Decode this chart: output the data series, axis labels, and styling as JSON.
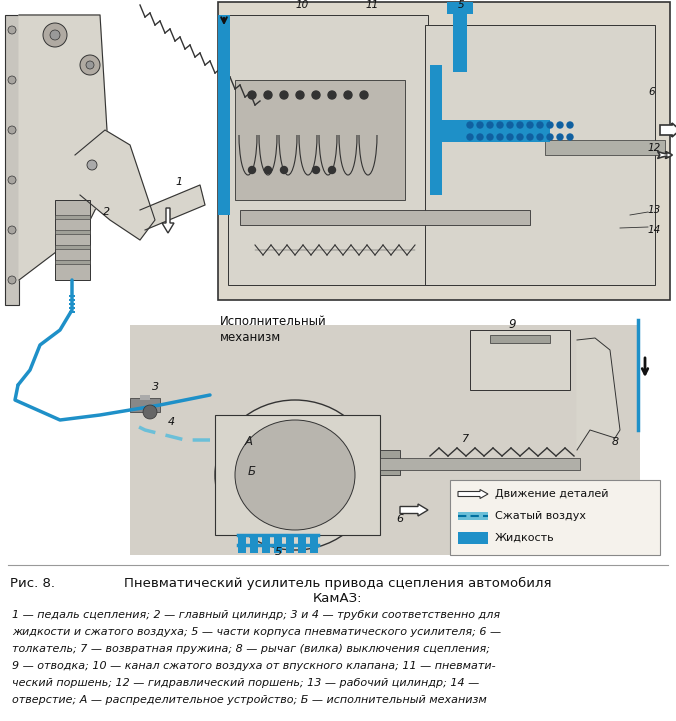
{
  "fig_width": 6.76,
  "fig_height": 7.21,
  "dpi": 100,
  "bg_color": "#ffffff",
  "diagram_bg": "#f0ebe0",
  "detail_box_bg": "#e8e3d8",
  "metal_color": "#c0bdb5",
  "metal_dark": "#a0a098",
  "metal_light": "#d8d5cc",
  "blue_solid": "#1e90c8",
  "blue_light": "#6bbfd8",
  "line_color": "#333333",
  "title_prefix": "Рис. 8.",
  "title_text": "    Пневматический усилитель привода сцепления автомобиля",
  "title_line2": "КамАЗ:",
  "caption_lines": [
    "1 — педаль сцепления; 2 — главный цилиндр; 3 и 4 — трубки соответственно для",
    "жидкости и сжатого воздуха; 5 — части корпуса пневматического усилителя; 6 —",
    "толкатель; 7 — возвратная пружина; 8 — рычаг (вилка) выключения сцепления;",
    "9 — отводка; 10 — канал сжатого воздуха от впускного клапана; 11 — пневмати-",
    "ческий поршень; 12 — гидравлический поршень; 13 — рабочий цилиндр; 14 —",
    "отверстие; А — распределительное устройство; Б — исполнительный механизм"
  ],
  "legend_liquid": "Жидкость",
  "legend_air": "Сжатый воздух",
  "legend_motion": "Движение деталей",
  "ispolnitelny": "Исполнительный\nмеханизм"
}
